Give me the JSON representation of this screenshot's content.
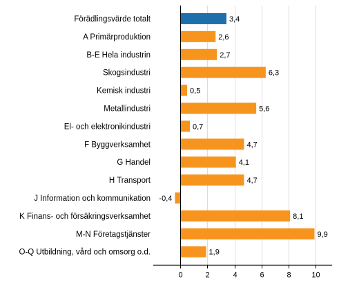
{
  "chart_data": {
    "type": "bar",
    "orientation": "horizontal",
    "categories": [
      "Förädlingsvärde totalt",
      "A Primärproduktion",
      "B-E Hela industrin",
      "Skogsindustri",
      "Kemisk industri",
      "Metallindustri",
      "El- och elektronikindustri",
      "F Byggverksamhet",
      "G Handel",
      "H Transport",
      "J Information och kommunikation",
      "K Finans- och försäkringsverksamhet",
      "M-N Företagstjänster",
      "O-Q Utbildning, vård och omsorg o.d."
    ],
    "values": [
      3.4,
      2.6,
      2.7,
      6.3,
      0.5,
      5.6,
      0.7,
      4.7,
      4.1,
      4.7,
      -0.4,
      8.1,
      9.9,
      1.9
    ],
    "value_labels": [
      "3,4",
      "2,6",
      "2,7",
      "6,3",
      "0,5",
      "5,6",
      "0,7",
      "4,7",
      "4,1",
      "4,7",
      "-0,4",
      "8,1",
      "9,9",
      "1,9"
    ],
    "bar_colors": [
      "#1f6fad",
      "#f7941d",
      "#f7941d",
      "#f7941d",
      "#f7941d",
      "#f7941d",
      "#f7941d",
      "#f7941d",
      "#f7941d",
      "#f7941d",
      "#f7941d",
      "#f7941d",
      "#f7941d",
      "#f7941d"
    ],
    "title": "",
    "xlabel": "",
    "ylabel": "",
    "xlim": [
      -2,
      11.2
    ],
    "xticks": [
      0,
      2,
      4,
      6,
      8,
      10
    ],
    "xtick_labels": [
      "0",
      "2",
      "4",
      "6",
      "8",
      "10"
    ],
    "grid": true,
    "legend": "none"
  }
}
